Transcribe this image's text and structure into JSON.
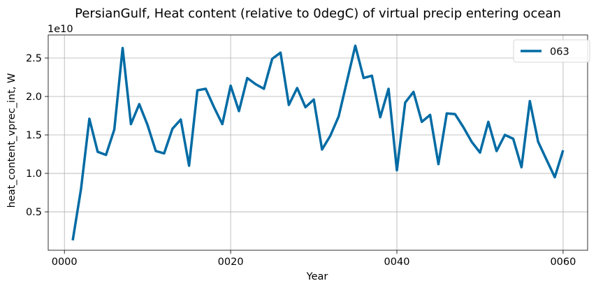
{
  "chart_data": {
    "type": "line",
    "title": "PersianGulf, Heat content (relative to 0degC) of virtual precip entering ocean",
    "xlabel": "Year",
    "ylabel": "heat_content_vprec_int, W",
    "y_offset_text": "1e10",
    "y_scale": 10000000000,
    "xlim": [
      -1.95,
      62.95
    ],
    "ylim": [
      0.0006,
      2.8
    ],
    "x_ticks": [
      0,
      20,
      40,
      60
    ],
    "x_tick_labels": [
      "0000",
      "0020",
      "0040",
      "0060"
    ],
    "y_ticks": [
      0.5,
      1.0,
      1.5,
      2.0,
      2.5
    ],
    "y_tick_labels": [
      "0.5",
      "1.0",
      "1.5",
      "2.0",
      "2.5"
    ],
    "grid": true,
    "legend_position": "top-right",
    "series": [
      {
        "name": "063",
        "color": "#006ba4",
        "x": [
          1,
          2,
          3,
          4,
          5,
          6,
          7,
          8,
          9,
          10,
          11,
          12,
          13,
          14,
          15,
          16,
          17,
          18,
          19,
          20,
          21,
          22,
          23,
          24,
          25,
          26,
          27,
          28,
          29,
          30,
          31,
          32,
          33,
          34,
          35,
          36,
          37,
          38,
          39,
          40,
          41,
          42,
          43,
          44,
          45,
          46,
          47,
          48,
          49,
          50,
          51,
          52,
          53,
          54,
          55,
          56,
          57,
          58,
          59,
          60
        ],
        "y": [
          0.13,
          0.8,
          1.71,
          1.28,
          1.24,
          1.57,
          2.63,
          1.64,
          1.9,
          1.63,
          1.29,
          1.26,
          1.58,
          1.7,
          1.1,
          2.08,
          2.1,
          1.86,
          1.64,
          2.14,
          1.81,
          2.24,
          2.16,
          2.1,
          2.49,
          2.57,
          1.89,
          2.11,
          1.86,
          1.96,
          1.31,
          1.49,
          1.74,
          2.2,
          2.66,
          2.24,
          2.27,
          1.73,
          2.1,
          1.04,
          1.92,
          2.06,
          1.67,
          1.76,
          1.12,
          1.78,
          1.77,
          1.6,
          1.41,
          1.27,
          1.67,
          1.29,
          1.5,
          1.45,
          1.08,
          1.94,
          1.41,
          1.18,
          0.95,
          1.3
        ]
      }
    ]
  }
}
